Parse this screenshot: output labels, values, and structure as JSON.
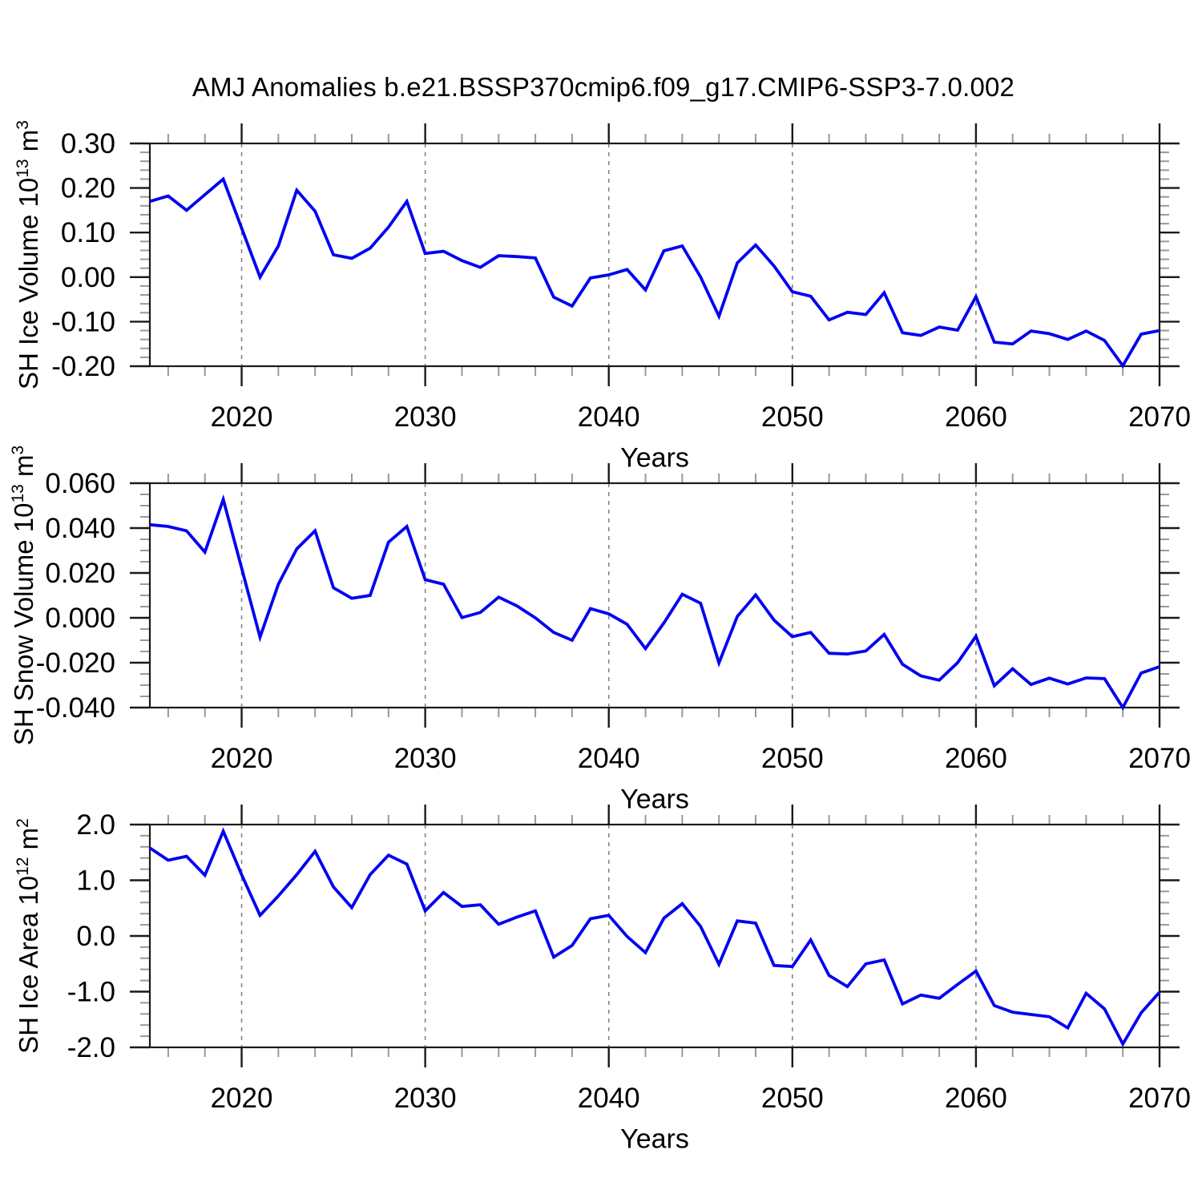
{
  "title": "AMJ Anomalies b.e21.BSSP370cmip6.f09_g17.CMIP6-SSP3-7.0.002",
  "style": {
    "line_color": "#0202f0",
    "grid_color": "#858585",
    "axis_color": "#1a1a1a",
    "minor_tick_color": "#999999",
    "text_color": "#000000",
    "background": "#ffffff"
  },
  "chart_data": [
    {
      "type": "line",
      "ylabel": {
        "prefix": "SH Ice Volume 10",
        "power": "13",
        "unit": " m",
        "unit_power": "3"
      },
      "xlabel": "Years",
      "x": [
        2015,
        2016,
        2017,
        2018,
        2019,
        2020,
        2021,
        2022,
        2023,
        2024,
        2025,
        2026,
        2027,
        2028,
        2029,
        2030,
        2031,
        2032,
        2033,
        2034,
        2035,
        2036,
        2037,
        2038,
        2039,
        2040,
        2041,
        2042,
        2043,
        2044,
        2045,
        2046,
        2047,
        2048,
        2049,
        2050,
        2051,
        2052,
        2053,
        2054,
        2055,
        2056,
        2057,
        2058,
        2059,
        2060,
        2061,
        2062,
        2063,
        2064,
        2065,
        2066,
        2067,
        2068,
        2069,
        2070
      ],
      "values": [
        0.17,
        0.182,
        0.15,
        0.185,
        0.22,
        0.11,
        0.0,
        0.07,
        0.195,
        0.148,
        0.05,
        0.042,
        0.065,
        0.112,
        0.17,
        0.053,
        0.058,
        0.037,
        0.022,
        0.048,
        0.046,
        0.043,
        -0.045,
        -0.065,
        -0.002,
        0.005,
        0.017,
        -0.029,
        0.059,
        0.07,
        0.0,
        -0.088,
        0.032,
        0.072,
        0.025,
        -0.033,
        -0.043,
        -0.096,
        -0.079,
        -0.084,
        -0.035,
        -0.125,
        -0.131,
        -0.112,
        -0.119,
        -0.044,
        -0.146,
        -0.15,
        -0.121,
        -0.127,
        -0.14,
        -0.121,
        -0.142,
        -0.199,
        -0.128,
        -0.12
      ],
      "ylim": [
        -0.2,
        0.3
      ],
      "yticks": [
        0.3,
        0.2,
        0.1,
        0.0,
        -0.1,
        -0.2
      ],
      "ytick_labels": [
        "0.30",
        "0.20",
        "0.10",
        "0.00",
        "-0.10",
        "-0.20"
      ],
      "yminor_step": 0.02,
      "xticks": [
        2020,
        2030,
        2040,
        2050,
        2060,
        2070
      ],
      "xtick_labels": [
        "2020",
        "2030",
        "2040",
        "2050",
        "2060",
        "2070"
      ],
      "xminor_step": 2,
      "grid_x": [
        2020,
        2030,
        2040,
        2050,
        2060
      ],
      "grid_style": "vertical-dashed",
      "legend": "none"
    },
    {
      "type": "line",
      "ylabel": {
        "prefix": "SH Snow Volume 10",
        "power": "13",
        "unit": " m",
        "unit_power": "3"
      },
      "xlabel": "Years",
      "x": [
        2015,
        2016,
        2017,
        2018,
        2019,
        2020,
        2021,
        2022,
        2023,
        2024,
        2025,
        2026,
        2027,
        2028,
        2029,
        2030,
        2031,
        2032,
        2033,
        2034,
        2035,
        2036,
        2037,
        2038,
        2039,
        2040,
        2041,
        2042,
        2043,
        2044,
        2045,
        2046,
        2047,
        2048,
        2049,
        2050,
        2051,
        2052,
        2053,
        2054,
        2055,
        2056,
        2057,
        2058,
        2059,
        2060,
        2061,
        2062,
        2063,
        2064,
        2065,
        2066,
        2067,
        2068,
        2069,
        2070
      ],
      "values": [
        0.0415,
        0.0407,
        0.0388,
        0.0293,
        0.0528,
        0.0222,
        -0.0086,
        0.015,
        0.0307,
        0.0388,
        0.0134,
        0.0087,
        0.01,
        0.0337,
        0.0407,
        0.017,
        0.015,
        0.0001,
        0.0024,
        0.0092,
        0.0053,
        0.0,
        -0.0065,
        -0.01,
        0.0041,
        0.0018,
        -0.0029,
        -0.0137,
        -0.0023,
        0.0105,
        0.0065,
        -0.0201,
        0.0006,
        0.0102,
        -0.001,
        -0.0084,
        -0.0065,
        -0.0158,
        -0.0161,
        -0.0148,
        -0.0074,
        -0.0207,
        -0.0259,
        -0.0278,
        -0.02,
        -0.0082,
        -0.0303,
        -0.0227,
        -0.0297,
        -0.0269,
        -0.0295,
        -0.0268,
        -0.0271,
        -0.04,
        -0.0246,
        -0.0218
      ],
      "ylim": [
        -0.04,
        0.06
      ],
      "yticks": [
        0.06,
        0.04,
        0.02,
        0.0,
        -0.02,
        -0.04
      ],
      "ytick_labels": [
        "0.060",
        "0.040",
        "0.020",
        "0.000",
        "-0.020",
        "-0.040"
      ],
      "yminor_step": 0.005,
      "xticks": [
        2020,
        2030,
        2040,
        2050,
        2060,
        2070
      ],
      "xtick_labels": [
        "2020",
        "2030",
        "2040",
        "2050",
        "2060",
        "2070"
      ],
      "xminor_step": 2,
      "grid_x": [
        2020,
        2030,
        2040,
        2050,
        2060
      ],
      "grid_style": "vertical-dashed",
      "legend": "none"
    },
    {
      "type": "line",
      "ylabel": {
        "prefix": "SH Ice Area 10",
        "power": "12",
        "unit": " m",
        "unit_power": "2"
      },
      "xlabel": "Years",
      "x": [
        2015,
        2016,
        2017,
        2018,
        2019,
        2020,
        2021,
        2022,
        2023,
        2024,
        2025,
        2026,
        2027,
        2028,
        2029,
        2030,
        2031,
        2032,
        2033,
        2034,
        2035,
        2036,
        2037,
        2038,
        2039,
        2040,
        2041,
        2042,
        2043,
        2044,
        2045,
        2046,
        2047,
        2048,
        2049,
        2050,
        2051,
        2052,
        2053,
        2054,
        2055,
        2056,
        2057,
        2058,
        2059,
        2060,
        2061,
        2062,
        2063,
        2064,
        2065,
        2066,
        2067,
        2068,
        2069,
        2070
      ],
      "values": [
        1.58,
        1.36,
        1.43,
        1.09,
        1.88,
        1.1,
        0.37,
        0.72,
        1.1,
        1.52,
        0.88,
        0.51,
        1.1,
        1.45,
        1.29,
        0.45,
        0.78,
        0.53,
        0.56,
        0.21,
        0.34,
        0.45,
        -0.38,
        -0.17,
        0.31,
        0.37,
        -0.01,
        -0.3,
        0.32,
        0.58,
        0.17,
        -0.51,
        0.27,
        0.23,
        -0.53,
        -0.55,
        -0.07,
        -0.71,
        -0.91,
        -0.5,
        -0.43,
        -1.22,
        -1.06,
        -1.12,
        -0.87,
        -0.63,
        -1.25,
        -1.37,
        -1.41,
        -1.45,
        -1.65,
        -1.03,
        -1.31,
        -1.94,
        -1.38,
        -1.01
      ],
      "ylim": [
        -2.0,
        2.0
      ],
      "yticks": [
        2.0,
        1.0,
        0.0,
        -1.0,
        -2.0
      ],
      "ytick_labels": [
        "2.0",
        "1.0",
        "0.0",
        "-1.0",
        "-2.0"
      ],
      "yminor_step": 0.2,
      "xticks": [
        2020,
        2030,
        2040,
        2050,
        2060,
        2070
      ],
      "xtick_labels": [
        "2020",
        "2030",
        "2040",
        "2050",
        "2060",
        "2070"
      ],
      "xminor_step": 2,
      "grid_x": [
        2020,
        2030,
        2040,
        2050,
        2060
      ],
      "grid_style": "vertical-dashed",
      "legend": "none"
    }
  ]
}
